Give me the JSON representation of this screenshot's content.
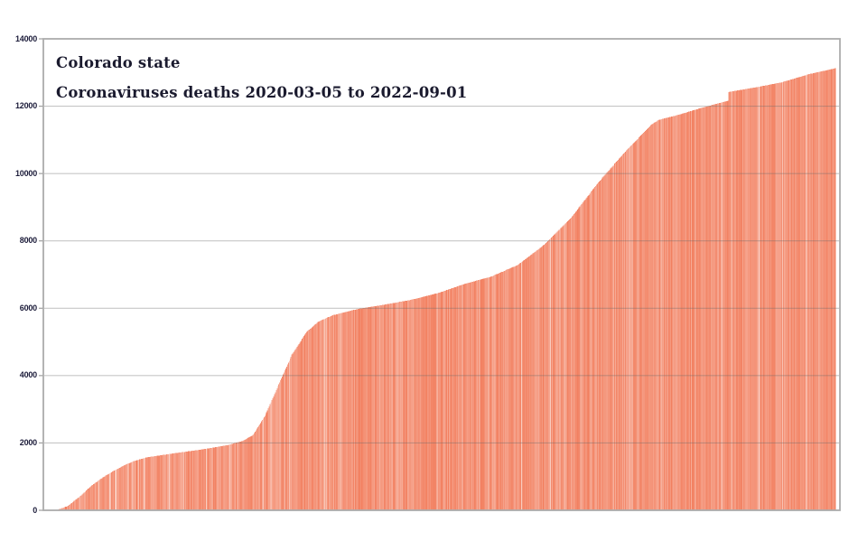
{
  "page": {
    "background": "#ffffff"
  },
  "chart_data": {
    "type": "bar",
    "title": "Colorado state",
    "subtitle": "Coronaviruses deaths 2020-03-05 to 2022-09-01",
    "xlabel": "",
    "ylabel": "",
    "x_range": [
      "2020-03-05",
      "2022-09-01"
    ],
    "x_tick_labels_visible": false,
    "ylim": [
      0,
      14000
    ],
    "y_ticks": [
      0,
      2000,
      4000,
      6000,
      8000,
      10000,
      12000,
      14000
    ],
    "grid": true,
    "legend": false,
    "bar_granularity": "one bar per day, cumulative",
    "series": [
      {
        "name": "Cumulative deaths",
        "anchor_points": [
          [
            "2020-03-05",
            0
          ],
          [
            "2020-03-20",
            8
          ],
          [
            "2020-04-01",
            120
          ],
          [
            "2020-04-15",
            400
          ],
          [
            "2020-05-01",
            780
          ],
          [
            "2020-05-15",
            1030
          ],
          [
            "2020-06-01",
            1280
          ],
          [
            "2020-06-15",
            1450
          ],
          [
            "2020-07-01",
            1570
          ],
          [
            "2020-08-01",
            1690
          ],
          [
            "2020-09-01",
            1800
          ],
          [
            "2020-10-01",
            1930
          ],
          [
            "2020-10-20",
            2060
          ],
          [
            "2020-11-01",
            2250
          ],
          [
            "2020-11-15",
            2850
          ],
          [
            "2020-12-01",
            3800
          ],
          [
            "2020-12-15",
            4620
          ],
          [
            "2021-01-01",
            5300
          ],
          [
            "2021-01-15",
            5610
          ],
          [
            "2021-02-01",
            5800
          ],
          [
            "2021-03-01",
            5980
          ],
          [
            "2021-04-01",
            6110
          ],
          [
            "2021-05-01",
            6250
          ],
          [
            "2021-06-01",
            6450
          ],
          [
            "2021-07-01",
            6720
          ],
          [
            "2021-08-01",
            6940
          ],
          [
            "2021-09-01",
            7290
          ],
          [
            "2021-10-01",
            7890
          ],
          [
            "2021-11-01",
            8690
          ],
          [
            "2021-12-01",
            9700
          ],
          [
            "2022-01-01",
            10620
          ],
          [
            "2022-02-01",
            11450
          ],
          [
            "2022-02-10",
            11600
          ],
          [
            "2022-03-01",
            11720
          ],
          [
            "2022-04-01",
            11960
          ],
          [
            "2022-04-30",
            12160
          ],
          [
            "2022-05-01",
            12420
          ],
          [
            "2022-06-01",
            12560
          ],
          [
            "2022-07-01",
            12710
          ],
          [
            "2022-08-01",
            12950
          ],
          [
            "2022-09-01",
            13130
          ]
        ]
      }
    ],
    "colors": {
      "bar_base": "#F4936F",
      "bar_light": "#FBC3AC",
      "bar_dark": "#EF7E5B",
      "gridline": "#C2C2C2",
      "plot_border": "#ACACAC",
      "tick_label": "#1C1C3A",
      "title": "#1A1A2E"
    }
  }
}
